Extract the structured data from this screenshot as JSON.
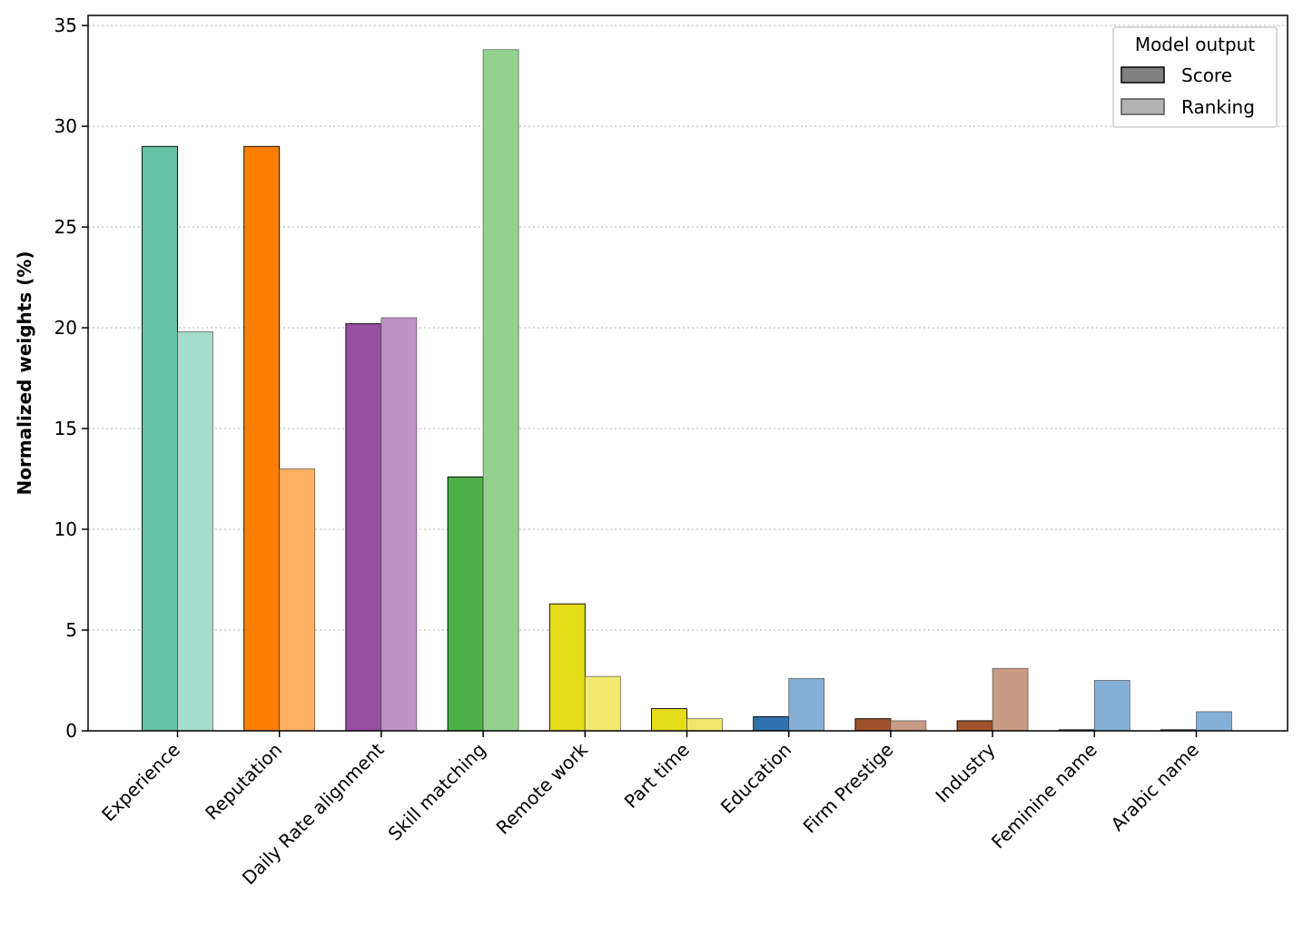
{
  "chart_data": {
    "type": "bar",
    "ylabel": "Normalized weights (%)",
    "xlabel": "",
    "ylim": [
      0,
      35.5
    ],
    "yticks": [
      0,
      5,
      10,
      15,
      20,
      25,
      30,
      35
    ],
    "grid": "horizontal-dotted",
    "categories": [
      "Experience",
      "Reputation",
      "Daily Rate alignment",
      "Skill matching",
      "Remote work",
      "Part time",
      "Education",
      "Firm Prestige",
      "Industry",
      "Feminine name",
      "Arabic name"
    ],
    "series": [
      {
        "name": "Score",
        "values": [
          29.0,
          29.0,
          20.2,
          12.6,
          6.3,
          1.1,
          0.7,
          0.6,
          0.5,
          0.05,
          0.05
        ]
      },
      {
        "name": "Ranking",
        "values": [
          19.8,
          13.0,
          20.5,
          33.8,
          2.7,
          0.6,
          2.6,
          0.5,
          3.1,
          2.5,
          0.95
        ]
      }
    ],
    "score_colors": [
      "#66c2a5",
      "#ff7f00",
      "#984ea3",
      "#4daf4a",
      "#e5dc1a",
      "#e5dc1a",
      "#2f72b0",
      "#a0522d",
      "#a0522d",
      "#7faed4",
      "#7faed4"
    ],
    "ranking_colors": [
      "#a6dccb",
      "#ffb062",
      "#c291c7",
      "#94d18f",
      "#f1e86e",
      "#f1e86e",
      "#85b0d6",
      "#c89c84",
      "#c89c84",
      "#85b0d6",
      "#85b0d6"
    ],
    "legend": {
      "title": "Model output",
      "placement": "top-right",
      "entries": [
        {
          "label": "Score",
          "color": "#808080"
        },
        {
          "label": "Ranking",
          "color": "#b3b3b3"
        }
      ]
    }
  }
}
